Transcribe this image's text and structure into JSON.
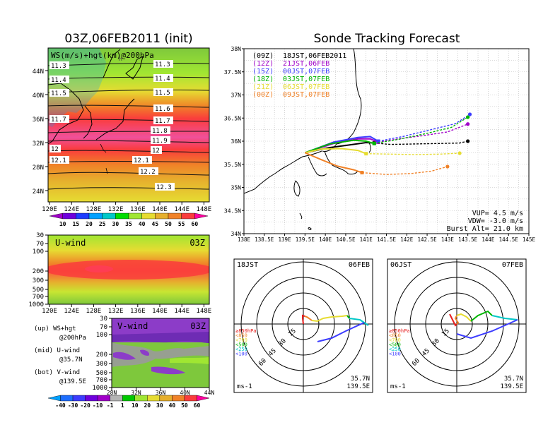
{
  "left_title": "03Z,06FEB2011 (init)",
  "right_title": "Sonde Tracking Forecast",
  "ws_map": {
    "label": "WS(m/s)+hgt(km)@200hPa",
    "lat_ticks": [
      "44N",
      "40N",
      "36N",
      "32N",
      "28N",
      "24N"
    ],
    "lon_ticks": [
      "120E",
      "124E",
      "128E",
      "132E",
      "136E",
      "140E",
      "144E",
      "148E"
    ],
    "contour_labels_left": [
      "11.3",
      "11.4",
      "11.5",
      "11.7",
      "12",
      "12.1"
    ],
    "contour_labels_right": [
      "11.3",
      "11.4",
      "11.5",
      "11.6",
      "11.7",
      "11.8",
      "11.9",
      "12",
      "12.1",
      "12.2",
      "12.3"
    ],
    "colorbar": [
      "10",
      "15",
      "20",
      "25",
      "30",
      "35",
      "40",
      "45",
      "50",
      "55",
      "60"
    ],
    "colorbar_colors": [
      "#a000c8",
      "#6e00dc",
      "#1e3cff",
      "#00a0ff",
      "#00c8c8",
      "#00dc00",
      "#a0e632",
      "#e6dc32",
      "#e6af2d",
      "#f08228",
      "#fa3c3c",
      "#ff00a0"
    ]
  },
  "u_wind": {
    "label": "U-wind",
    "time": "03Z",
    "p_ticks": [
      "30",
      "70",
      "100",
      "200",
      "300",
      "500",
      "700",
      "1000"
    ],
    "lon_ticks": [
      "120E",
      "124E",
      "128E",
      "132E",
      "136E",
      "140E",
      "144E",
      "148E"
    ]
  },
  "v_wind": {
    "label": "V-wind",
    "time": "03Z",
    "p_ticks": [
      "30",
      "70",
      "100",
      "200",
      "300",
      "500",
      "700",
      "1000"
    ],
    "lat_ticks": [
      "28N",
      "32N",
      "36N",
      "40N",
      "44N"
    ]
  },
  "legend_notes": [
    {
      "line1": "(up) WS+hgt",
      "line2": "@200hPa"
    },
    {
      "line1": "(mid) U-wind",
      "line2": "@35.7N"
    },
    {
      "line1": "(bot) V-wind",
      "line2": "@139.5E"
    }
  ],
  "bottom_colorbar": {
    "labels": [
      "-40",
      "-30",
      "-20",
      "-10",
      "-1",
      "1",
      "10",
      "20",
      "30",
      "40",
      "50",
      "60"
    ],
    "colors": [
      "#00a0ff",
      "#1e6eff",
      "#3c3cff",
      "#6e00dc",
      "#a000c8",
      "#b4b4b4",
      "#00c800",
      "#a0e632",
      "#e6dc32",
      "#e6af2d",
      "#f08228",
      "#fa3c3c",
      "#ff00a0"
    ]
  },
  "track_map": {
    "lat_ticks": [
      "38N",
      "37.5N",
      "37N",
      "36.5N",
      "36N",
      "35.5N",
      "35N",
      "34.5N",
      "34N"
    ],
    "lon_ticks": [
      "138E",
      "138.5E",
      "139E",
      "139.5E",
      "140E",
      "140.5E",
      "141E",
      "141.5E",
      "142E",
      "142.5E",
      "143E",
      "143.5E",
      "144E",
      "144.5E",
      "145E"
    ],
    "legend": [
      {
        "code": "(09Z)",
        "time": "18JST,06FEB2011",
        "color": "#000000"
      },
      {
        "code": "(12Z)",
        "time": "21JST,06FEB",
        "color": "#a000c8"
      },
      {
        "code": "(15Z)",
        "time": "00JST,07FEB",
        "color": "#3c3cff"
      },
      {
        "code": "(18Z)",
        "time": "03JST,07FEB",
        "color": "#00b400"
      },
      {
        "code": "(21Z)",
        "time": "06JST,07FEB",
        "color": "#e6dc32"
      },
      {
        "code": "(00Z)",
        "time": "09JST,07FEB",
        "color": "#f08228"
      }
    ],
    "params": [
      "VUP= 4.5 m/s",
      "VDW= -3.0 m/s",
      "Burst Alt= 21.0 km"
    ]
  },
  "hodographs": [
    {
      "left": "18JST",
      "right": "06FEB",
      "unit": "ms-1",
      "lat": "35.7N",
      "lon": "139.5E",
      "rings": [
        "15",
        "30",
        "45",
        "60"
      ]
    },
    {
      "left": "06JST",
      "right": "07FEB",
      "unit": "ms-1",
      "lat": "35.7N",
      "lon": "139.5E",
      "rings": [
        "15",
        "30",
        "45",
        "60"
      ]
    }
  ],
  "hodo_legend": [
    {
      "text": "≥850hPa",
      "color": "#e61e1e"
    },
    {
      "text": "<850",
      "color": "#f08228"
    },
    {
      "text": "<700",
      "color": "#e6dc32"
    },
    {
      "text": "<500",
      "color": "#00b400"
    },
    {
      "text": "<250",
      "color": "#00c8c8"
    },
    {
      "text": "<100",
      "color": "#3c3cff"
    }
  ],
  "chart_data": [
    {
      "type": "heatmap",
      "title": "03Z,06FEB2011 (init)",
      "label": "WS(m/s)+hgt(km)@200hPa",
      "xlim": [
        120,
        150
      ],
      "ylim": [
        22,
        48
      ],
      "contours_km": [
        11.3,
        11.4,
        11.5,
        11.6,
        11.7,
        11.8,
        11.9,
        12,
        12.1,
        12.2,
        12.3
      ],
      "colorbar": [
        10,
        15,
        20,
        25,
        30,
        35,
        40,
        45,
        50,
        55,
        60
      ]
    },
    {
      "type": "heatmap",
      "label": "U-wind",
      "time": "03Z",
      "xlim": [
        120,
        150
      ],
      "pressure_levels": [
        30,
        70,
        100,
        200,
        300,
        500,
        700,
        1000
      ]
    },
    {
      "type": "heatmap",
      "label": "V-wind",
      "time": "03Z",
      "xlim": [
        28,
        44
      ],
      "pressure_levels": [
        30,
        70,
        100,
        200,
        300,
        500,
        700,
        1000
      ],
      "colorbar": [
        -40,
        -30,
        -20,
        -10,
        -1,
        1,
        10,
        20,
        30,
        40,
        50,
        60
      ]
    },
    {
      "type": "line",
      "title": "Sonde Tracking Forecast",
      "xlim": [
        138,
        145
      ],
      "ylim": [
        34,
        38
      ],
      "series": [
        {
          "name": "(09Z) 18JST,06FEB2011",
          "x": [
            139.5,
            140.1,
            140.6,
            141.0,
            141.2,
            141.6,
            142.2,
            142.8,
            143.3,
            143.5
          ],
          "y": [
            35.75,
            35.86,
            35.92,
            35.97,
            35.96,
            35.93,
            35.94,
            35.95,
            35.96,
            36.0
          ]
        },
        {
          "name": "(12Z) 21JST,06FEB",
          "x": [
            139.5,
            140.2,
            140.8,
            141.1,
            141.3,
            141.8,
            142.4,
            143.0,
            143.5
          ],
          "y": [
            35.75,
            35.95,
            36.05,
            36.05,
            35.98,
            36.05,
            36.12,
            36.2,
            36.37
          ]
        },
        {
          "name": "(15Z) 00JST,07FEB",
          "x": [
            139.5,
            140.2,
            140.8,
            141.1,
            141.3,
            141.9,
            142.6,
            143.2,
            143.55
          ],
          "y": [
            35.75,
            35.98,
            36.08,
            36.1,
            36.0,
            36.1,
            36.25,
            36.38,
            36.58
          ]
        },
        {
          "name": "(18Z) 03JST,07FEB",
          "x": [
            139.5,
            140.1,
            140.7,
            141.0,
            141.2,
            141.8,
            142.5,
            143.1,
            143.5
          ],
          "y": [
            35.75,
            35.94,
            36.02,
            36.0,
            35.95,
            36.04,
            36.17,
            36.3,
            36.52
          ]
        },
        {
          "name": "(21Z) 06JST,07FEB",
          "x": [
            139.5,
            139.9,
            140.4,
            140.8,
            141.0,
            141.6,
            142.2,
            142.8,
            143.3
          ],
          "y": [
            35.75,
            35.83,
            35.84,
            35.8,
            35.73,
            35.72,
            35.71,
            35.72,
            35.74
          ]
        },
        {
          "name": "(00Z) 09JST,07FEB",
          "x": [
            139.5,
            139.9,
            140.3,
            140.7,
            140.9,
            141.5,
            142.1,
            142.6,
            143.0
          ],
          "y": [
            35.75,
            35.6,
            35.46,
            35.38,
            35.32,
            35.28,
            35.3,
            35.35,
            35.45
          ]
        }
      ],
      "annotations": [
        "VUP= 4.5 m/s",
        "VDW= -3.0 m/s",
        "Burst Alt= 21.0 km"
      ]
    }
  ]
}
